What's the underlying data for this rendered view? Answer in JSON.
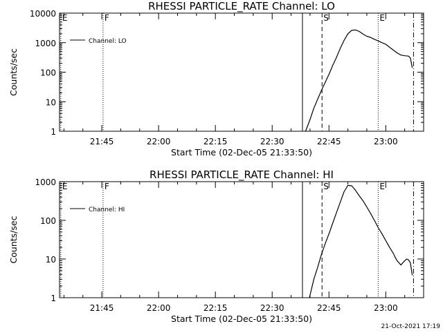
{
  "footer_stamp": "21-Oct-2021 17:19",
  "chart_data": [
    {
      "type": "line",
      "title": "RHESSI PARTICLE_RATE Channel: LO",
      "xlabel": "Start Time (02-Dec-05 21:33:50)",
      "ylabel": "Counts/sec",
      "y_scale": "log",
      "ylim": [
        1,
        10000
      ],
      "y_ticks": [
        {
          "v": 1,
          "label": "1"
        },
        {
          "v": 10,
          "label": "10"
        },
        {
          "v": 100,
          "label": "100"
        },
        {
          "v": 1000,
          "label": "1000"
        },
        {
          "v": 10000,
          "label": "10000"
        }
      ],
      "xlim": [
        "21:33:50",
        "23:10:00"
      ],
      "x_ticks": [
        {
          "t": "21:45",
          "label": "21:45"
        },
        {
          "t": "22:00",
          "label": "22:00"
        },
        {
          "t": "22:15",
          "label": "22:15"
        },
        {
          "t": "22:30",
          "label": "22:30"
        },
        {
          "t": "22:45",
          "label": "22:45"
        },
        {
          "t": "23:00",
          "label": "23:00"
        }
      ],
      "legend": {
        "label": "Channel: LO",
        "placement": "top-left"
      },
      "markers": [
        {
          "t": "21:34:10",
          "style": "dotted",
          "label": "E"
        },
        {
          "t": "21:45:20",
          "style": "dotted",
          "label": "F"
        },
        {
          "t": "22:38:00",
          "style": "solid",
          "label": ""
        },
        {
          "t": "22:43:10",
          "style": "dashed",
          "label": "S"
        },
        {
          "t": "22:58:00",
          "style": "dotted",
          "label": "E"
        },
        {
          "t": "23:07:20",
          "style": "dashdot",
          "label": ""
        }
      ],
      "series": [
        {
          "x": [
            "22:38:50",
            "22:40:00",
            "22:41:00",
            "22:42:00",
            "22:43:00",
            "22:44:00",
            "22:45:00",
            "22:46:00",
            "22:47:00",
            "22:48:00",
            "22:49:00",
            "22:50:00",
            "22:51:00",
            "22:52:00",
            "22:53:00",
            "22:54:00",
            "22:55:00",
            "22:56:00",
            "22:57:00",
            "22:58:00",
            "22:59:00",
            "23:00:00",
            "23:01:00",
            "23:02:00",
            "23:03:00",
            "23:04:00",
            "23:05:00",
            "23:06:00",
            "23:06:30",
            "23:07:00"
          ],
          "y": [
            1,
            2.5,
            6,
            12,
            24,
            45,
            85,
            170,
            320,
            650,
            1200,
            2000,
            2600,
            2700,
            2400,
            1950,
            1650,
            1500,
            1300,
            1150,
            1000,
            880,
            700,
            560,
            450,
            380,
            360,
            350,
            300,
            140
          ]
        }
      ]
    },
    {
      "type": "line",
      "title": "RHESSI PARTICLE_RATE Channel: HI",
      "xlabel": "Start Time (02-Dec-05 21:33:50)",
      "ylabel": "Counts/sec",
      "y_scale": "log",
      "ylim": [
        1,
        1000
      ],
      "y_ticks": [
        {
          "v": 1,
          "label": "1"
        },
        {
          "v": 10,
          "label": "10"
        },
        {
          "v": 100,
          "label": "100"
        },
        {
          "v": 1000,
          "label": "1000"
        }
      ],
      "xlim": [
        "21:33:50",
        "23:10:00"
      ],
      "x_ticks": [
        {
          "t": "21:45",
          "label": "21:45"
        },
        {
          "t": "22:00",
          "label": "22:00"
        },
        {
          "t": "22:15",
          "label": "22:15"
        },
        {
          "t": "22:30",
          "label": "22:30"
        },
        {
          "t": "22:45",
          "label": "22:45"
        },
        {
          "t": "23:00",
          "label": "23:00"
        }
      ],
      "legend": {
        "label": "Channel: HI",
        "placement": "top-left"
      },
      "markers": [
        {
          "t": "21:34:10",
          "style": "dotted",
          "label": "E"
        },
        {
          "t": "21:45:20",
          "style": "dotted",
          "label": "F"
        },
        {
          "t": "22:38:00",
          "style": "solid",
          "label": ""
        },
        {
          "t": "22:43:10",
          "style": "dashed",
          "label": "S"
        },
        {
          "t": "22:58:00",
          "style": "dotted",
          "label": "E"
        },
        {
          "t": "23:07:20",
          "style": "dashdot",
          "label": ""
        }
      ],
      "series": [
        {
          "x": [
            "22:39:50",
            "22:41:00",
            "22:42:00",
            "22:43:00",
            "22:44:00",
            "22:45:00",
            "22:46:00",
            "22:47:00",
            "22:48:00",
            "22:49:00",
            "22:50:00",
            "22:51:00",
            "22:52:00",
            "22:53:00",
            "22:54:00",
            "22:55:00",
            "22:56:00",
            "22:57:00",
            "22:58:00",
            "22:59:00",
            "23:00:00",
            "23:01:00",
            "23:02:00",
            "23:02:30",
            "23:03:00",
            "23:03:30",
            "23:04:00",
            "23:04:30",
            "23:05:00",
            "23:05:30",
            "23:06:00",
            "23:06:30",
            "23:07:00"
          ],
          "y": [
            1,
            3,
            6,
            13,
            25,
            45,
            85,
            160,
            300,
            550,
            800,
            780,
            600,
            430,
            320,
            220,
            150,
            100,
            65,
            45,
            30,
            20,
            14,
            11,
            9,
            8,
            7,
            8,
            9,
            10,
            9.5,
            8,
            3.8
          ]
        }
      ]
    }
  ]
}
